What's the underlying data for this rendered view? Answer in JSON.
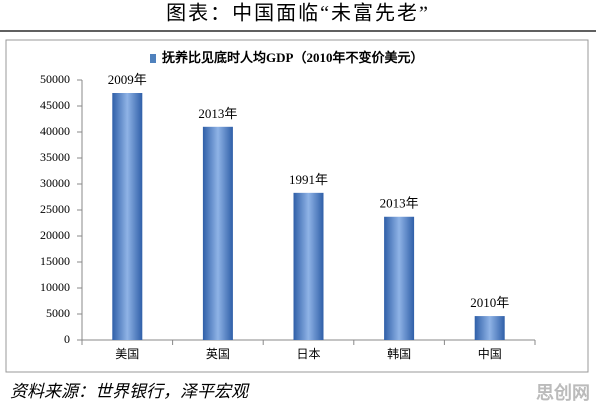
{
  "chart_data": {
    "type": "bar",
    "title": "图表：中国面临“未富先老”",
    "legend": "抚养比见底时人均GDP（2010年不变价美元）",
    "categories": [
      "美国",
      "英国",
      "日本",
      "韩国",
      "中国"
    ],
    "values": [
      47500,
      41000,
      28300,
      23700,
      4600
    ],
    "bar_labels": [
      "2009年",
      "2013年",
      "1991年",
      "2013年",
      "2010年"
    ],
    "color": "#4f81bd",
    "ylim": [
      0,
      50000
    ],
    "yticks": [
      0,
      5000,
      10000,
      15000,
      20000,
      25000,
      30000,
      35000,
      40000,
      45000,
      50000
    ],
    "source": "资料来源：世界银行，泽平宏观",
    "watermark": "思创网"
  }
}
